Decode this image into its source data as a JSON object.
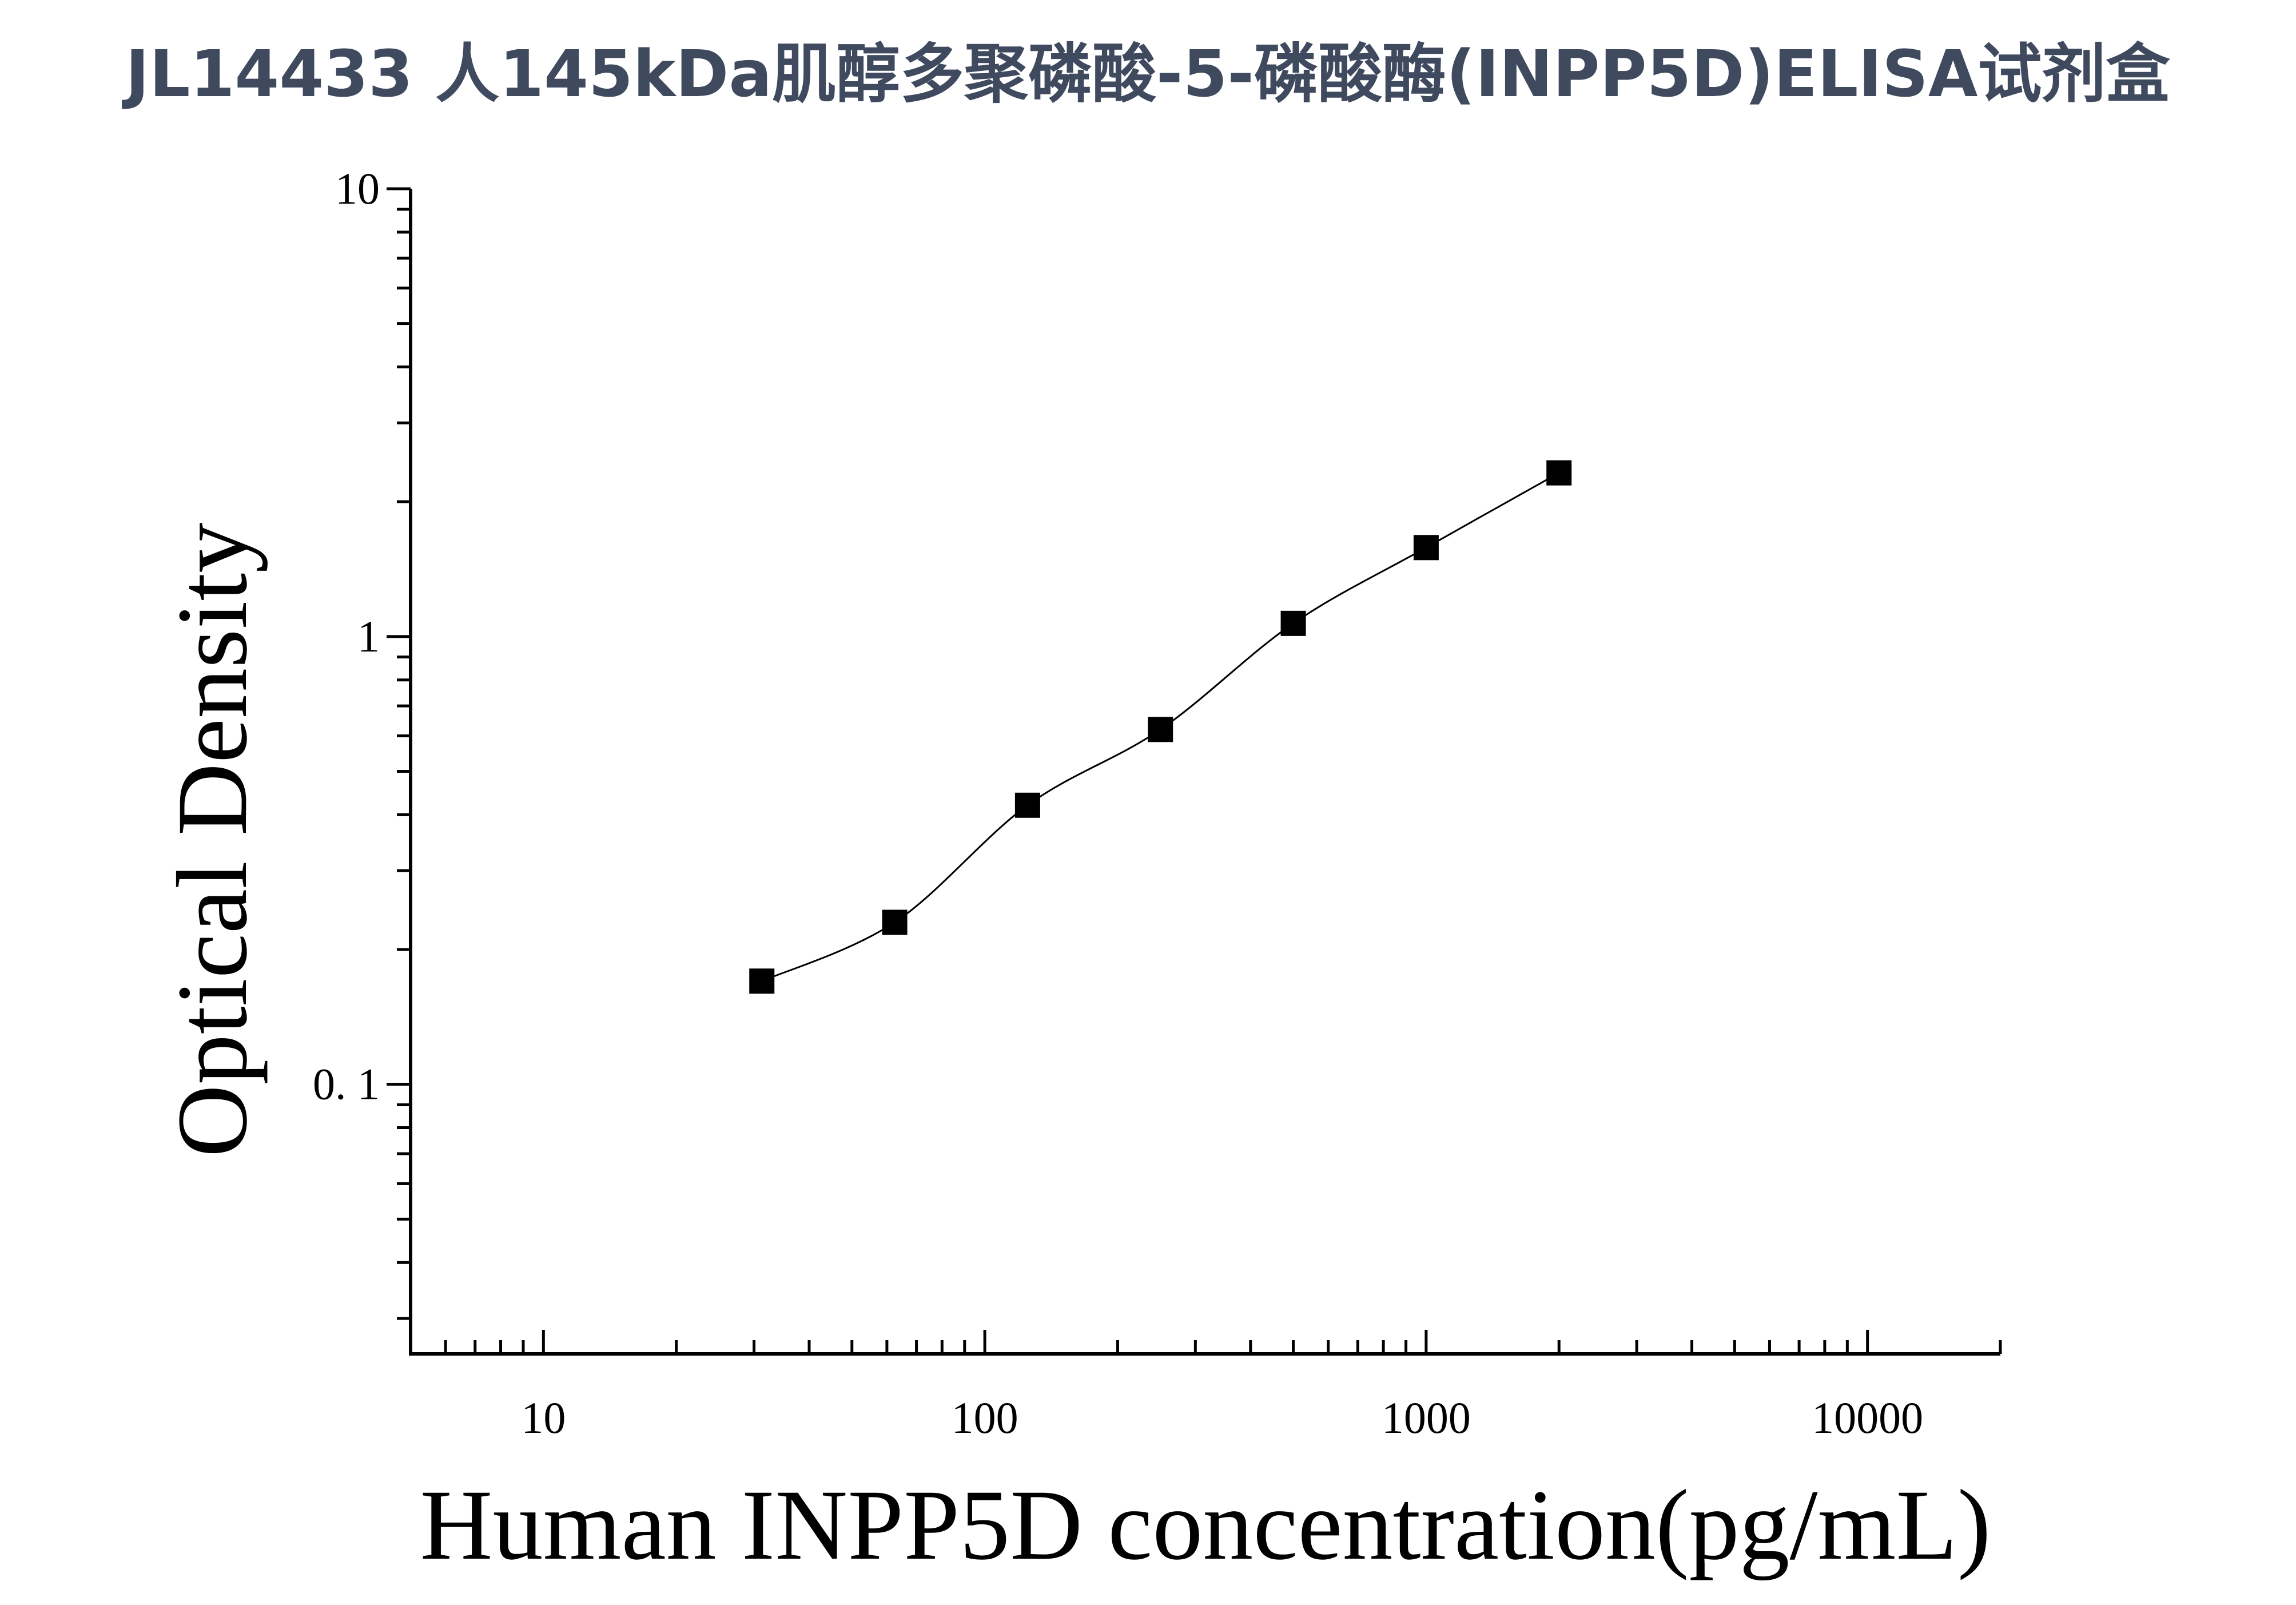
{
  "chart_data": {
    "type": "scatter",
    "title": "JL14433 人145kDa肌醇多聚磷酸-5-磷酸酶(INPP5D)ELISA试剂盒",
    "xlabel": "Human INPP5D concentration(pg/mL)",
    "ylabel": "Optical Density",
    "x_scale": "log",
    "y_scale": "log",
    "xlim": [
      5,
      20000
    ],
    "ylim": [
      0.025,
      10
    ],
    "x_ticks": [
      {
        "value": 10,
        "label": "10"
      },
      {
        "value": 100,
        "label": "100"
      },
      {
        "value": 1000,
        "label": "1000"
      },
      {
        "value": 10000,
        "label": "10000"
      }
    ],
    "y_ticks": [
      {
        "value": 0.1,
        "label": "0. 1"
      },
      {
        "value": 1,
        "label": "1"
      },
      {
        "value": 10,
        "label": "10"
      }
    ],
    "grid": false,
    "legend": "none",
    "marker": "square",
    "marker_color": "#000000",
    "line_color": "#000000",
    "series": [
      {
        "x": [
          31.25,
          62.5,
          125,
          250,
          500,
          1000,
          2000
        ],
        "y": [
          0.17,
          0.23,
          0.42,
          0.62,
          1.07,
          1.58,
          2.32
        ]
      }
    ]
  }
}
